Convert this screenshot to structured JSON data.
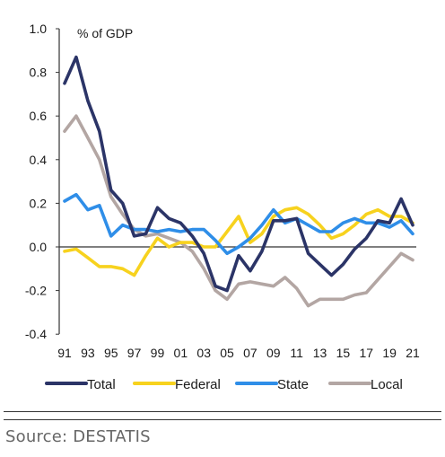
{
  "source": "Source: DESTATIS",
  "chart_data": {
    "type": "line",
    "unit_label": "% of GDP",
    "x": [
      1991,
      1992,
      1993,
      1994,
      1995,
      1996,
      1997,
      1998,
      1999,
      2000,
      2001,
      2002,
      2003,
      2004,
      2005,
      2006,
      2007,
      2008,
      2009,
      2010,
      2011,
      2012,
      2013,
      2014,
      2015,
      2016,
      2017,
      2018,
      2019,
      2020,
      2021
    ],
    "x_tick_labels": [
      "91",
      "93",
      "95",
      "97",
      "99",
      "01",
      "03",
      "05",
      "07",
      "09",
      "11",
      "13",
      "15",
      "17",
      "19",
      "21"
    ],
    "ylim": [
      -0.4,
      1.0
    ],
    "y_ticks": [
      -0.4,
      -0.2,
      0.0,
      0.2,
      0.4,
      0.6,
      0.8,
      1.0
    ],
    "y_tick_labels": [
      "-0.4",
      "-0.2",
      "0.0",
      "0.2",
      "0.4",
      "0.6",
      "0.8",
      "1.0"
    ],
    "grid": false,
    "legend_position": "bottom",
    "series": [
      {
        "name": "Total",
        "color": "#2b3467",
        "values": [
          0.75,
          0.87,
          0.67,
          0.53,
          0.26,
          0.2,
          0.05,
          0.06,
          0.18,
          0.13,
          0.11,
          0.05,
          -0.03,
          -0.18,
          -0.2,
          -0.04,
          -0.11,
          -0.02,
          0.12,
          0.12,
          0.13,
          -0.03,
          -0.08,
          -0.13,
          -0.08,
          -0.01,
          0.04,
          0.12,
          0.11,
          0.22,
          0.1
        ]
      },
      {
        "name": "Federal",
        "color": "#f7d21e",
        "values": [
          -0.02,
          -0.01,
          -0.05,
          -0.09,
          -0.09,
          -0.1,
          -0.13,
          -0.04,
          0.04,
          0.0,
          0.02,
          0.02,
          0.0,
          0.0,
          0.07,
          0.14,
          0.02,
          0.06,
          0.14,
          0.17,
          0.18,
          0.15,
          0.1,
          0.04,
          0.06,
          0.1,
          0.15,
          0.17,
          0.14,
          0.14,
          0.11
        ]
      },
      {
        "name": "State",
        "color": "#2f8ee8",
        "values": [
          0.21,
          0.24,
          0.17,
          0.19,
          0.05,
          0.1,
          0.08,
          0.08,
          0.07,
          0.08,
          0.07,
          0.08,
          0.08,
          0.03,
          -0.03,
          0.0,
          0.04,
          0.1,
          0.17,
          0.11,
          0.13,
          0.1,
          0.07,
          0.07,
          0.11,
          0.13,
          0.11,
          0.11,
          0.09,
          0.12,
          0.06
        ]
      },
      {
        "name": "Local",
        "color": "#b3a6a3",
        "values": [
          0.53,
          0.6,
          0.5,
          0.4,
          0.23,
          0.15,
          0.08,
          0.05,
          0.06,
          0.04,
          0.02,
          -0.02,
          -0.1,
          -0.2,
          -0.24,
          -0.17,
          -0.16,
          -0.17,
          -0.18,
          -0.14,
          -0.19,
          -0.27,
          -0.24,
          -0.24,
          -0.24,
          -0.22,
          -0.21,
          -0.15,
          -0.09,
          -0.03,
          -0.06
        ]
      }
    ]
  }
}
